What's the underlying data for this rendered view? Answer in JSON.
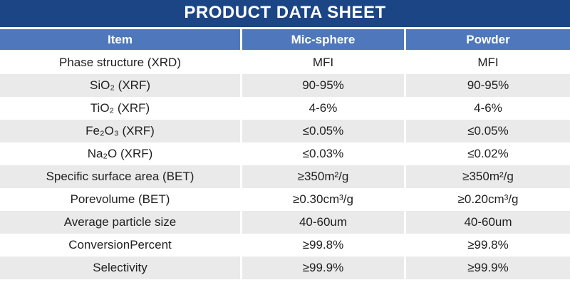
{
  "banner": {
    "title": "PRODUCT DATA SHEET"
  },
  "colors": {
    "banner_bg": "#1c4586",
    "header_row_bg": "#4f78bc",
    "row_alt_bg": "#eaeaea",
    "row_bg": "#ffffff",
    "header_text": "#ffffff",
    "body_text": "#1f1f1f",
    "divider": "#ffffff"
  },
  "table": {
    "columns": [
      "Item",
      "Mic-sphere",
      "Powder"
    ],
    "rows": [
      {
        "item": "Phase structure (XRD)",
        "mic_sphere": "MFI",
        "powder": "MFI"
      },
      {
        "item": "SiO₂ (XRF)",
        "mic_sphere": "90-95%",
        "powder": "90-95%"
      },
      {
        "item": "TiO₂ (XRF)",
        "mic_sphere": "4-6%",
        "powder": "4-6%"
      },
      {
        "item": "Fe₂O₃ (XRF)",
        "mic_sphere": "≤0.05%",
        "powder": "≤0.05%"
      },
      {
        "item": "Na₂O (XRF)",
        "mic_sphere": "≤0.03%",
        "powder": "≤0.02%"
      },
      {
        "item": "Specific surface area (BET)",
        "mic_sphere": "≥350m²/g",
        "powder": "≥350m²/g"
      },
      {
        "item": "Porevolume (BET)",
        "mic_sphere": "≥0.30cm³/g",
        "powder": "≥0.20cm³/g"
      },
      {
        "item": "Average particle size",
        "mic_sphere": "40-60um",
        "powder": "40-60um"
      },
      {
        "item": "ConversionPercent",
        "mic_sphere": "≥99.8%",
        "powder": "≥99.8%"
      },
      {
        "item": "Selectivity",
        "mic_sphere": "≥99.9%",
        "powder": "≥99.9%"
      }
    ]
  }
}
